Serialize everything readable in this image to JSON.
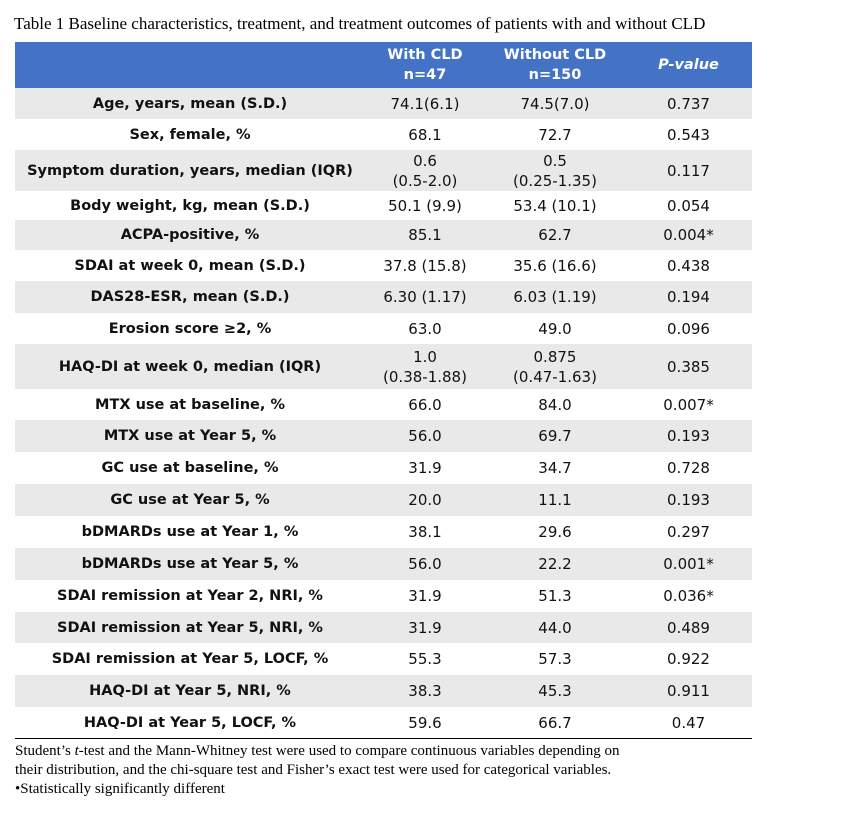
{
  "title": "Table 1 Baseline characteristics, treatment, and treatment outcomes of patients with and without CLD",
  "header": [
    [
      "With CLD",
      "n=47"
    ],
    [
      "Without CLD",
      "n=150"
    ],
    [
      "P-value"
    ]
  ],
  "rows": [
    [
      "Age, years, mean (S.D.)",
      "74.1(6.1)",
      "74.5(7.0)",
      "0.737"
    ],
    [
      "Sex, female, %",
      "68.1",
      "72.7",
      "0.543"
    ],
    [
      "Symptom duration, years, median (IQR)",
      [
        "0.6",
        "(0.5-2.0)"
      ],
      [
        "0.5",
        "(0.25-1.35)"
      ],
      "0.117"
    ],
    [
      "Body weight, kg, mean (S.D.)",
      "50.1 (9.9)",
      "53.4 (10.1)",
      "0.054"
    ],
    [
      "ACPA-positive, %",
      "85.1",
      "62.7",
      "0.004*"
    ],
    [
      "SDAI at week 0, mean (S.D.)",
      "37.8 (15.8)",
      "35.6 (16.6)",
      "0.438"
    ],
    [
      "DAS28-ESR, mean (S.D.)",
      "6.30 (1.17)",
      "6.03 (1.19)",
      "0.194"
    ],
    [
      "Erosion score ≥2, %",
      "63.0",
      "49.0",
      "0.096"
    ],
    [
      "HAQ-DI at week 0, median (IQR)",
      [
        "1.0",
        "(0.38-1.88)"
      ],
      [
        "0.875",
        "(0.47-1.63)"
      ],
      "0.385"
    ],
    [
      "MTX use at baseline, %",
      "66.0",
      "84.0",
      "0.007*"
    ],
    [
      "MTX use at Year 5, %",
      "56.0",
      "69.7",
      "0.193"
    ],
    [
      "GC use at baseline, %",
      "31.9",
      "34.7",
      "0.728"
    ],
    [
      "GC use at Year 5, %",
      "20.0",
      "11.1",
      "0.193"
    ],
    [
      "bDMARDs use at Year 1, %",
      "38.1",
      "29.6",
      "0.297"
    ],
    [
      "bDMARDs use at Year 5, %",
      "56.0",
      "22.2",
      "0.001*"
    ],
    [
      "SDAI remission at Year 2, NRI, %",
      "31.9",
      "51.3",
      "0.036*"
    ],
    [
      "SDAI remission at Year 5, NRI, %",
      "31.9",
      "44.0",
      "0.489"
    ],
    [
      "SDAI remission at Year 5, LOCF, %",
      "55.3",
      "57.3",
      "0.922"
    ],
    [
      "HAQ-DI at Year 5, NRI, %",
      "38.3",
      "45.3",
      "0.911"
    ],
    [
      "HAQ-DI at Year 5, LOCF, %",
      "59.6",
      "66.7",
      "0.47"
    ]
  ],
  "footnote": [
    [
      "Student’s ",
      "t",
      "-test and the Mann-Whitney test were used to compare continuous variables depending on"
    ],
    [
      "their distribution, and the chi-square test and Fisher’s exact test were used for categorical variables."
    ],
    [
      "•Statistically significantly different"
    ]
  ]
}
